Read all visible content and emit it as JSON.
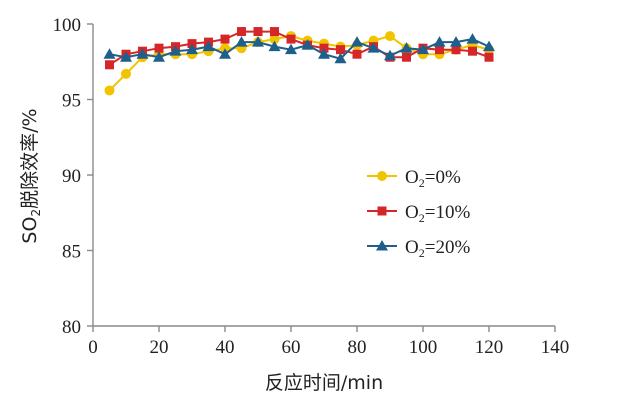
{
  "chart_data": {
    "type": "line",
    "xlabel": "反应时间/min",
    "ylabel": "SO2脱除效率/%",
    "ylabel_parts": {
      "pre": "SO",
      "sub": "2",
      "post": "脱除效率/%"
    },
    "xlim": [
      0,
      140
    ],
    "ylim": [
      80,
      100
    ],
    "xticks": [
      0,
      20,
      40,
      60,
      80,
      100,
      120,
      140
    ],
    "yticks": [
      80,
      85,
      90,
      95,
      100
    ],
    "grid": false,
    "legend_position": "center-right",
    "x": [
      5,
      10,
      15,
      20,
      25,
      30,
      35,
      40,
      45,
      50,
      55,
      60,
      65,
      70,
      75,
      80,
      85,
      90,
      95,
      100,
      105,
      110,
      115,
      120
    ],
    "series": [
      {
        "name": "O2=0%",
        "label_parts": {
          "pre": "O",
          "sub": "2",
          "post": "=0%"
        },
        "color": "#f2c400",
        "marker": "circle",
        "values": [
          95.6,
          96.7,
          97.8,
          98.0,
          98.0,
          98.0,
          98.2,
          98.4,
          98.4,
          98.8,
          99.0,
          99.2,
          98.9,
          98.7,
          98.5,
          98.6,
          98.9,
          99.2,
          98.4,
          98.0,
          98.0,
          98.3,
          98.6,
          98.3
        ]
      },
      {
        "name": "O2=10%",
        "label_parts": {
          "pre": "O",
          "sub": "2",
          "post": "=10%"
        },
        "color": "#d62728",
        "marker": "square",
        "values": [
          97.3,
          98.0,
          98.2,
          98.4,
          98.5,
          98.7,
          98.8,
          99.0,
          99.5,
          99.5,
          99.5,
          99.0,
          98.6,
          98.4,
          98.3,
          98.0,
          98.5,
          97.8,
          97.8,
          98.4,
          98.3,
          98.3,
          98.2,
          97.8
        ]
      },
      {
        "name": "O2=20%",
        "label_parts": {
          "pre": "O",
          "sub": "2",
          "post": "=20%"
        },
        "color": "#1f5f8b",
        "marker": "triangle",
        "values": [
          98.0,
          97.8,
          98.0,
          97.8,
          98.2,
          98.3,
          98.5,
          98.0,
          98.8,
          98.8,
          98.5,
          98.3,
          98.6,
          98.0,
          97.7,
          98.8,
          98.4,
          97.9,
          98.4,
          98.3,
          98.8,
          98.8,
          99.0,
          98.5
        ]
      }
    ]
  }
}
